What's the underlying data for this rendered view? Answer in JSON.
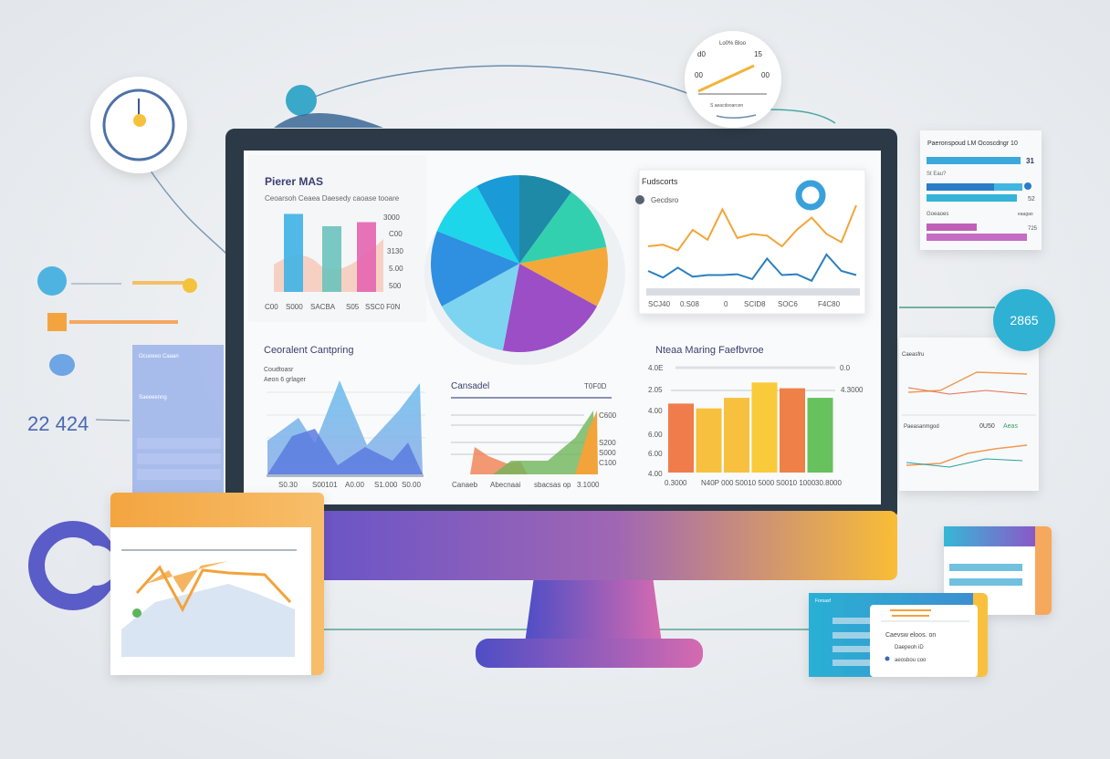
{
  "colors": {
    "bezel": "#2c3a47",
    "accent_purple": "#6a56c8",
    "accent_orange": "#f6b73c",
    "teal": "#2fb6d6",
    "pink": "#e06fb3",
    "green": "#5cbf5a"
  },
  "top_left_panel": {
    "title": "Pierer MAS",
    "subtitle": "Ceoarsoh Ceaea Daesedy caoase tooare",
    "y_labels": [
      "3000",
      "C00",
      "3130",
      "5.00",
      "500"
    ],
    "x_labels": [
      "C00",
      "S000",
      "SACBA",
      "S05",
      "SSC0 F0N"
    ],
    "bars": [
      {
        "color": "#3fb2e6",
        "level": 0.95
      },
      {
        "color": "#6cc3bd",
        "level": 0.8
      },
      {
        "color": "#e465b0",
        "level": 0.85
      }
    ]
  },
  "pie": {
    "slices": [
      {
        "color": "#1e8aa8",
        "value": 10
      },
      {
        "color": "#33d0b0",
        "value": 12
      },
      {
        "color": "#f4a83a",
        "value": 11
      },
      {
        "color": "#9b4ec6",
        "value": 20
      },
      {
        "color": "#7dd4f0",
        "value": 14
      },
      {
        "color": "#2f8fe0",
        "value": 14
      },
      {
        "color": "#1dd6ea",
        "value": 11
      },
      {
        "color": "#1a9ad6",
        "value": 8
      }
    ]
  },
  "line_panel": {
    "title": "Fudscorts",
    "legend": "Gecdsro",
    "x_labels": [
      "SCJ40",
      "0.S08",
      "0",
      "SCID8",
      "SOC6",
      "F4C80"
    ],
    "series": [
      {
        "color": "#f2a53a",
        "values": [
          5,
          5.2,
          4.5,
          7,
          5.8,
          9.5,
          6,
          6.5,
          6.3,
          5,
          7,
          8.5,
          6.5,
          5.5,
          10
        ]
      },
      {
        "color": "#2a7fbf",
        "values": [
          2,
          1.2,
          2.4,
          1.3,
          1.5,
          1.5,
          1.6,
          1,
          3.5,
          1.5,
          1.6,
          0.8,
          4,
          2,
          1.5
        ]
      }
    ]
  },
  "area_panel": {
    "title": "Ceoralent Cantpring",
    "subtitle_1": "Coudtoasr",
    "subtitle_2": "Aeon 6 grlager",
    "x_labels": [
      "S0.30",
      "S00101",
      "A0.00",
      "S1.000",
      "S0.00"
    ]
  },
  "mid_panel": {
    "title": "Cansadel",
    "value": "T0F0D",
    "y_labels": [
      "C600",
      "S200",
      "S000",
      "C100"
    ],
    "x_labels": [
      "Canaeb",
      "Abecnaai",
      "sbacsas op",
      "3.1000"
    ]
  },
  "bar_panel": {
    "title": "Nteaa Maring Faefbvroe",
    "left_labels": [
      "4.0E",
      "2.05",
      "4.00",
      "6.00",
      "6.00",
      "4.00"
    ],
    "right_labels": [
      "0.0",
      "4.3000"
    ],
    "x_labels": [
      "0.3000",
      "N40P 000",
      "S0010 5000",
      "S0010 1000",
      "30.8000"
    ],
    "bars": [
      {
        "color": "#f07c4c",
        "level": 0.72
      },
      {
        "color": "#f7c03e",
        "level": 0.67
      },
      {
        "color": "#f7c03e",
        "level": 0.78
      },
      {
        "color": "#f9ca3a",
        "level": 0.94
      },
      {
        "color": "#ef8048",
        "level": 0.88
      },
      {
        "color": "#67c15c",
        "level": 0.78
      }
    ]
  },
  "right_card": {
    "title": "Paeronspoud LM Ocoscdngr 10",
    "values": [
      "31",
      "52",
      "725"
    ],
    "labels": [
      "St Eau?",
      "Goeaoes",
      "eaagao"
    ]
  },
  "badge": {
    "value": "2865"
  },
  "right_panels": {
    "label_1": "Caeasfru",
    "label_2": "Paeasanmgod",
    "value": "0U50",
    "tag": "Aeas"
  },
  "gauge_top": {
    "title": "Lo0% Bloo",
    "left_top": "d0",
    "right_top": "15",
    "left": "00",
    "right": "00",
    "caption": "S aeacdsoarcen"
  },
  "left_side": {
    "big_number": "22 424",
    "panel_title": "Ocuoeeo Caaan",
    "panel_subtitle": "Saeeeenng"
  },
  "bottom_card": {
    "header": "Foroasf",
    "items": [
      "Caevsw eloos. on",
      "Daepeoh iD",
      "aeosbou coo"
    ]
  }
}
